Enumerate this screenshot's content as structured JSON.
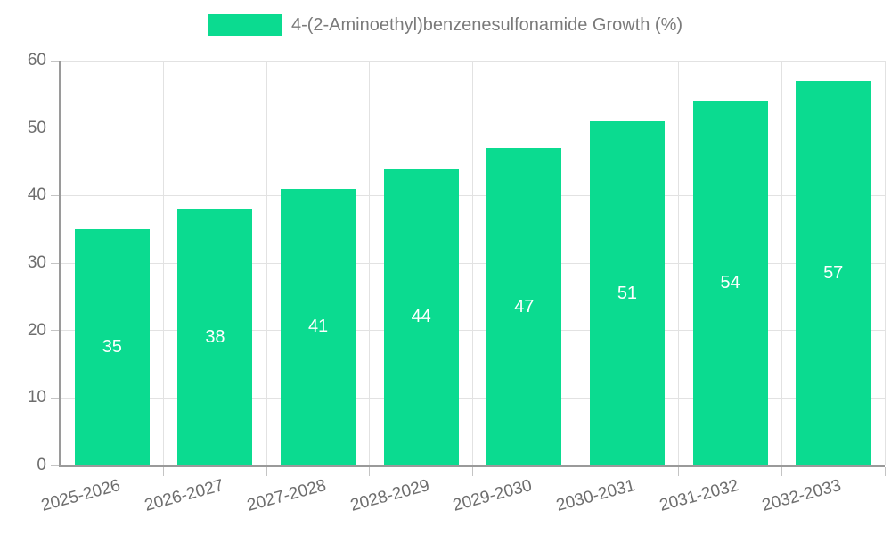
{
  "chart_data": {
    "type": "bar",
    "title": "4-(2-Aminoethyl)benzenesulfonamide Growth (%)",
    "categories": [
      "2025-2026",
      "2026-2027",
      "2027-2028",
      "2028-2029",
      "2029-2030",
      "2030-2031",
      "2031-2032",
      "2032-2033"
    ],
    "values": [
      35,
      38,
      41,
      44,
      47,
      51,
      54,
      57
    ],
    "xlabel": "",
    "ylabel": "",
    "ylim": [
      0,
      60
    ],
    "yticks": [
      0,
      10,
      20,
      30,
      40,
      50,
      60
    ],
    "grid": true,
    "legend_position": "top",
    "bar_labels_shown": true
  },
  "colors": {
    "bar": "#0bdb90",
    "bar_label": "#ffffff",
    "grid": "#e2e2e2",
    "axis": "#9a9a9a",
    "tick_mark": "#c4c4c4",
    "tick_text": "#6d6d6d",
    "legend_text": "#7a7a7a",
    "background": "#ffffff"
  }
}
